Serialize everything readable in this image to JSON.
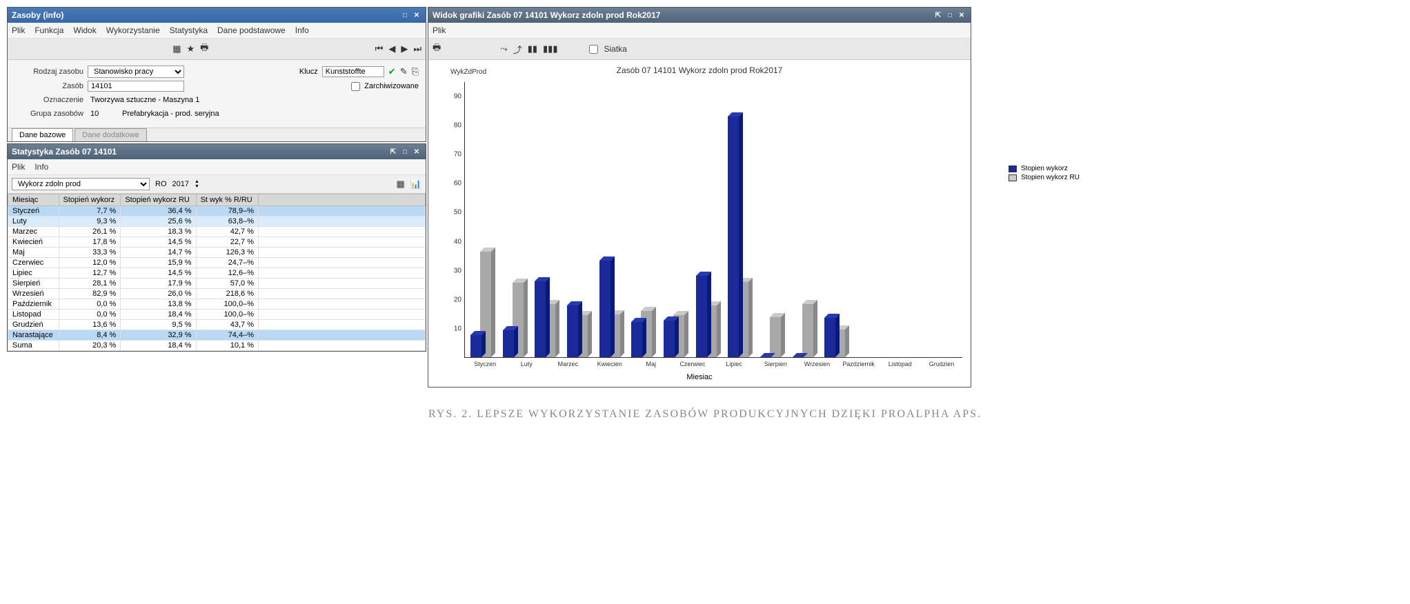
{
  "colors": {
    "titlebar_blue": "#3668a8",
    "titlebar_steel": "#4e6278",
    "bar_blue": "#1a2a9a",
    "bar_gray": "#a8a8a8",
    "row_highlight_strong": "#b8d8f5",
    "row_highlight_light": "#d9ecfb"
  },
  "caption": "RYS. 2. LEPSZE WYKORZYSTANIE ZASOBÓW PRODUKCYJNYCH DZIĘKI PROALPHA APS.",
  "zasoby": {
    "title": "Zasoby (info)",
    "menus": [
      "Plik",
      "Funkcja",
      "Widok",
      "Wykorzystanie",
      "Statystyka",
      "Dane podstawowe",
      "Info"
    ],
    "toolbar_icons": {
      "calendar": "▦",
      "star": "★",
      "print": "🖶"
    },
    "nav_icons": {
      "first": "⏮",
      "prev": "◀",
      "next": "▶",
      "last": "⏭"
    },
    "fields": {
      "rodzaj_label": "Rodzaj zasobu",
      "rodzaj_value": "Stanowisko pracy",
      "zasob_label": "Zasób",
      "zasob_value": "14101",
      "oznaczenie_label": "Oznaczenie",
      "oznaczenie_value": "Tworzywa sztuczne - Maszyna 1",
      "grupa_label": "Grupa zasobów",
      "grupa_num": "10",
      "grupa_text": "Prefabrykacja - prod. seryjna",
      "klucz_label": "Klucz",
      "klucz_value": "Kunststoffte",
      "zarchiwizowane_label": "Zarchiwizowane"
    },
    "tabs": {
      "active": "Dane bazowe",
      "inactive": "Dane dodatkowe"
    }
  },
  "statystyka": {
    "title": "Statystyka Zasób 07 14101",
    "menus": [
      "Plik",
      "Info"
    ],
    "metric_select": "Wykorz zdoln prod",
    "year_label": "RO",
    "year_value": "2017",
    "columns": [
      "Miesiąc",
      "Stopień wykorz",
      "Stopień wykorz RU",
      "St wyk % R/RU"
    ],
    "rows": [
      {
        "m": "Styczeń",
        "a": "7,7 %",
        "b": "36,4 %",
        "c": "78,9–%",
        "hl": "blue"
      },
      {
        "m": "Luty",
        "a": "9,3 %",
        "b": "25,6 %",
        "c": "63,8–%",
        "hl": "lt"
      },
      {
        "m": "Marzec",
        "a": "26,1 %",
        "b": "18,3 %",
        "c": "42,7 %"
      },
      {
        "m": "Kwiecień",
        "a": "17,8 %",
        "b": "14,5 %",
        "c": "22,7 %"
      },
      {
        "m": "Maj",
        "a": "33,3 %",
        "b": "14,7 %",
        "c": "126,3 %"
      },
      {
        "m": "Czerwiec",
        "a": "12,0 %",
        "b": "15,9 %",
        "c": "24,7–%"
      },
      {
        "m": "Lipiec",
        "a": "12,7 %",
        "b": "14,5 %",
        "c": "12,6–%"
      },
      {
        "m": "Sierpień",
        "a": "28,1 %",
        "b": "17,9 %",
        "c": "57,0 %"
      },
      {
        "m": "Wrzesień",
        "a": "82,9 %",
        "b": "26,0 %",
        "c": "218,6 %"
      },
      {
        "m": "Październik",
        "a": "0,0 %",
        "b": "13,8 %",
        "c": "100,0–%"
      },
      {
        "m": "Listopad",
        "a": "0,0 %",
        "b": "18,4 %",
        "c": "100,0–%"
      },
      {
        "m": "Grudzień",
        "a": "13,6 %",
        "b": "9,5 %",
        "c": "43,7 %"
      },
      {
        "m": "Narastające",
        "a": "8,4 %",
        "b": "32,9 %",
        "c": "74,4–%",
        "hl": "blue"
      },
      {
        "m": "Suma",
        "a": "20,3 %",
        "b": "18,4 %",
        "c": "10,1 %"
      }
    ]
  },
  "grafika": {
    "title": "Widok grafiki Zasób 07 14101 Wykorz zdoln prod  Rok2017",
    "menus": [
      "Plik"
    ],
    "toolbar": {
      "print": "🖶",
      "siatka_label": "Siatka",
      "icons": [
        "⤳",
        "⤴",
        "▮▮",
        "▮▮▮"
      ]
    },
    "chart": {
      "type": "bar-3d-grouped",
      "title": "Zasób 07 14101 Wykorz zdoln prod  Rok2017",
      "y_label": "WykZdProd",
      "x_label": "Miesiac",
      "y_ticks": [
        10,
        20,
        30,
        40,
        50,
        60,
        70,
        80,
        90
      ],
      "y_max": 95,
      "categories": [
        "Styczen",
        "Luty",
        "Marzec",
        "Kwiecien",
        "Maj",
        "Czerwiec",
        "Lipiec",
        "Sierpien",
        "Wrzesien",
        "Pazdziernik",
        "Listopad",
        "Grudzien"
      ],
      "series": [
        {
          "name": "Stopien wykorz",
          "color": "#1a2a9a",
          "values": [
            7.7,
            9.3,
            26.1,
            17.8,
            33.3,
            12.0,
            12.7,
            28.1,
            82.9,
            0.0,
            0.0,
            13.6
          ]
        },
        {
          "name": "Stopien wykorz RU",
          "color": "#a8a8a8",
          "values": [
            36.4,
            25.6,
            18.3,
            14.5,
            14.7,
            15.9,
            14.5,
            17.9,
            26.0,
            13.8,
            18.4,
            9.5
          ]
        }
      ],
      "legend": [
        "Stopien wykorz",
        "Stopien wykorz RU"
      ]
    }
  }
}
